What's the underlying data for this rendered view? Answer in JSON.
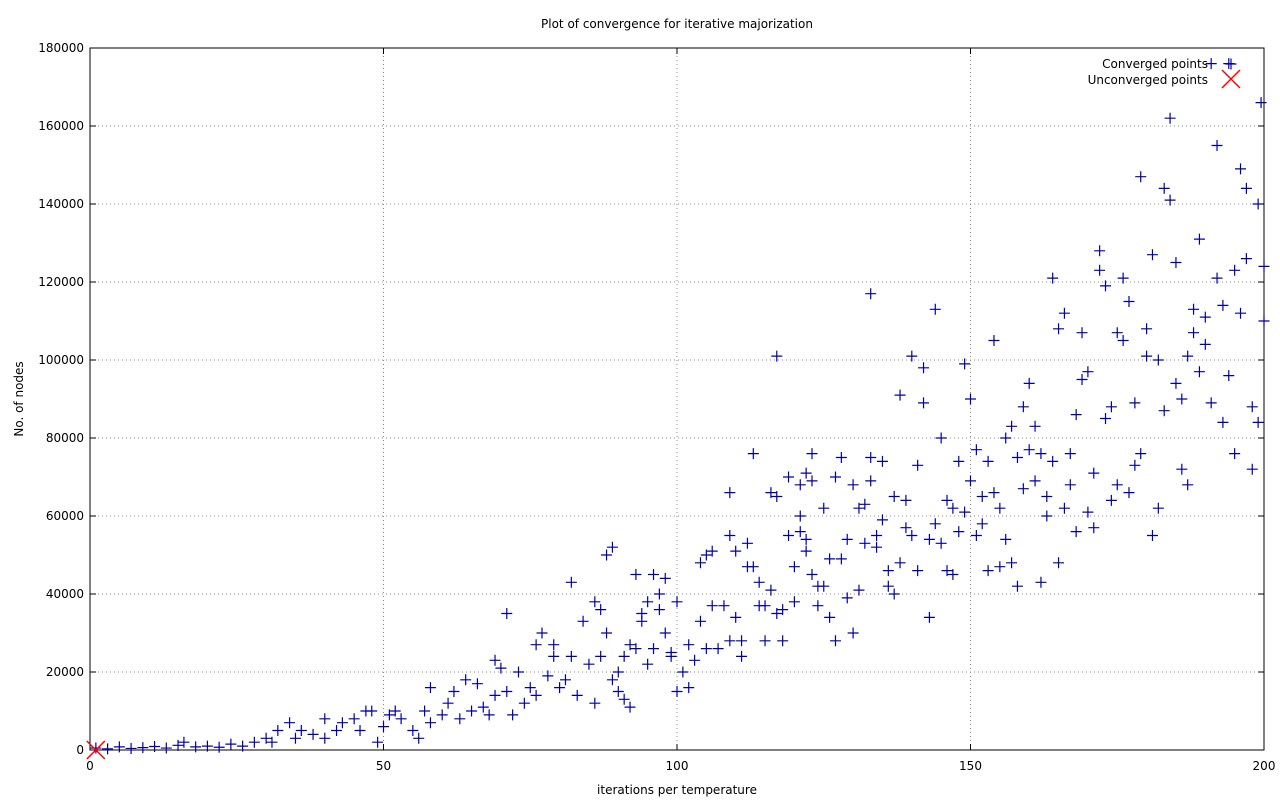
{
  "chart_data": {
    "type": "scatter",
    "title": "Plot of convergence for iterative majorization",
    "xlabel": "iterations per temperature",
    "ylabel": "No. of nodes",
    "xlim": [
      0,
      200
    ],
    "ylim": [
      0,
      180000
    ],
    "xticks": [
      0,
      50,
      100,
      150,
      200
    ],
    "yticks": [
      0,
      20000,
      40000,
      60000,
      80000,
      100000,
      120000,
      140000,
      160000,
      180000
    ],
    "grid": true,
    "legend_position": "top-right",
    "colors": {
      "converged": "#0000aa",
      "unconverged": "#ff0000",
      "grid": "#888888"
    },
    "series": [
      {
        "name": "Converged points",
        "marker": "plus",
        "points": [
          [
            1,
            500
          ],
          [
            3,
            300
          ],
          [
            5,
            800
          ],
          [
            7,
            400
          ],
          [
            9,
            600
          ],
          [
            11,
            900
          ],
          [
            13,
            500
          ],
          [
            15,
            1200
          ],
          [
            16,
            2000
          ],
          [
            18,
            800
          ],
          [
            20,
            1000
          ],
          [
            22,
            700
          ],
          [
            24,
            1500
          ],
          [
            26,
            1000
          ],
          [
            28,
            2000
          ],
          [
            30,
            3000
          ],
          [
            31,
            2000
          ],
          [
            32,
            5000
          ],
          [
            34,
            7000
          ],
          [
            35,
            3000
          ],
          [
            36,
            5000
          ],
          [
            38,
            4000
          ],
          [
            40,
            3000
          ],
          [
            40,
            8000
          ],
          [
            42,
            5000
          ],
          [
            43,
            7000
          ],
          [
            45,
            8000
          ],
          [
            46,
            5000
          ],
          [
            47,
            10000
          ],
          [
            48,
            10000
          ],
          [
            49,
            2000
          ],
          [
            50,
            6000
          ],
          [
            51,
            9000
          ],
          [
            52,
            10000
          ],
          [
            53,
            8000
          ],
          [
            55,
            5000
          ],
          [
            56,
            3000
          ],
          [
            57,
            10000
          ],
          [
            58,
            7000
          ],
          [
            58,
            16000
          ],
          [
            60,
            9000
          ],
          [
            61,
            12000
          ],
          [
            62,
            15000
          ],
          [
            63,
            8000
          ],
          [
            64,
            18000
          ],
          [
            65,
            10000
          ],
          [
            66,
            17000
          ],
          [
            67,
            11000
          ],
          [
            68,
            9000
          ],
          [
            69,
            14000
          ],
          [
            69,
            23000
          ],
          [
            70,
            21000
          ],
          [
            71,
            35000
          ],
          [
            71,
            15000
          ],
          [
            72,
            9000
          ],
          [
            73,
            20000
          ],
          [
            74,
            12000
          ],
          [
            75,
            16000
          ],
          [
            76,
            14000
          ],
          [
            76,
            27000
          ],
          [
            77,
            30000
          ],
          [
            78,
            19000
          ],
          [
            79,
            24000
          ],
          [
            79,
            27000
          ],
          [
            80,
            16000
          ],
          [
            81,
            18000
          ],
          [
            82,
            43000
          ],
          [
            82,
            24000
          ],
          [
            83,
            14000
          ],
          [
            84,
            33000
          ],
          [
            85,
            22000
          ],
          [
            86,
            12000
          ],
          [
            86,
            38000
          ],
          [
            87,
            36000
          ],
          [
            87,
            24000
          ],
          [
            88,
            30000
          ],
          [
            88,
            50000
          ],
          [
            89,
            52000
          ],
          [
            89,
            18000
          ],
          [
            90,
            20000
          ],
          [
            90,
            15000
          ],
          [
            91,
            13000
          ],
          [
            91,
            24000
          ],
          [
            92,
            11000
          ],
          [
            92,
            27000
          ],
          [
            93,
            45000
          ],
          [
            93,
            26000
          ],
          [
            94,
            35000
          ],
          [
            94,
            33000
          ],
          [
            95,
            38000
          ],
          [
            95,
            22000
          ],
          [
            96,
            45000
          ],
          [
            96,
            26000
          ],
          [
            97,
            40000
          ],
          [
            97,
            36000
          ],
          [
            98,
            44000
          ],
          [
            98,
            30000
          ],
          [
            99,
            24000
          ],
          [
            99,
            25000
          ],
          [
            100,
            38000
          ],
          [
            100,
            15000
          ],
          [
            101,
            20000
          ],
          [
            102,
            16000
          ],
          [
            102,
            27000
          ],
          [
            103,
            23000
          ],
          [
            104,
            48000
          ],
          [
            104,
            33000
          ],
          [
            105,
            50000
          ],
          [
            105,
            26000
          ],
          [
            106,
            51000
          ],
          [
            106,
            37000
          ],
          [
            107,
            26000
          ],
          [
            108,
            37000
          ],
          [
            109,
            28000
          ],
          [
            109,
            55000
          ],
          [
            109,
            66000
          ],
          [
            110,
            51000
          ],
          [
            110,
            34000
          ],
          [
            111,
            28000
          ],
          [
            111,
            24000
          ],
          [
            112,
            47000
          ],
          [
            112,
            53000
          ],
          [
            113,
            76000
          ],
          [
            113,
            47000
          ],
          [
            114,
            43000
          ],
          [
            114,
            37000
          ],
          [
            115,
            37000
          ],
          [
            115,
            28000
          ],
          [
            116,
            66000
          ],
          [
            116,
            41000
          ],
          [
            117,
            65000
          ],
          [
            117,
            35000
          ],
          [
            117,
            101000
          ],
          [
            118,
            36000
          ],
          [
            118,
            28000
          ],
          [
            119,
            70000
          ],
          [
            119,
            55000
          ],
          [
            120,
            47000
          ],
          [
            120,
            38000
          ],
          [
            121,
            68000
          ],
          [
            121,
            60000
          ],
          [
            121,
            56000
          ],
          [
            122,
            71000
          ],
          [
            122,
            51000
          ],
          [
            122,
            54000
          ],
          [
            123,
            45000
          ],
          [
            123,
            69000
          ],
          [
            123,
            76000
          ],
          [
            124,
            42000
          ],
          [
            124,
            37000
          ],
          [
            125,
            62000
          ],
          [
            125,
            42000
          ],
          [
            126,
            49000
          ],
          [
            126,
            34000
          ],
          [
            127,
            70000
          ],
          [
            127,
            28000
          ],
          [
            128,
            49000
          ],
          [
            128,
            75000
          ],
          [
            129,
            39000
          ],
          [
            129,
            54000
          ],
          [
            130,
            30000
          ],
          [
            130,
            68000
          ],
          [
            131,
            41000
          ],
          [
            131,
            62000
          ],
          [
            132,
            53000
          ],
          [
            132,
            63000
          ],
          [
            133,
            75000
          ],
          [
            133,
            117000
          ],
          [
            133,
            69000
          ],
          [
            134,
            55000
          ],
          [
            134,
            52000
          ],
          [
            135,
            59000
          ],
          [
            135,
            74000
          ],
          [
            136,
            46000
          ],
          [
            136,
            42000
          ],
          [
            137,
            40000
          ],
          [
            137,
            65000
          ],
          [
            138,
            91000
          ],
          [
            138,
            48000
          ],
          [
            139,
            57000
          ],
          [
            139,
            64000
          ],
          [
            140,
            101000
          ],
          [
            140,
            55000
          ],
          [
            141,
            46000
          ],
          [
            141,
            73000
          ],
          [
            142,
            98000
          ],
          [
            142,
            89000
          ],
          [
            143,
            34000
          ],
          [
            143,
            54000
          ],
          [
            144,
            113000
          ],
          [
            144,
            58000
          ],
          [
            145,
            53000
          ],
          [
            145,
            80000
          ],
          [
            146,
            46000
          ],
          [
            146,
            64000
          ],
          [
            147,
            45000
          ],
          [
            147,
            62000
          ],
          [
            148,
            74000
          ],
          [
            148,
            56000
          ],
          [
            149,
            99000
          ],
          [
            149,
            61000
          ],
          [
            150,
            90000
          ],
          [
            150,
            69000
          ],
          [
            151,
            77000
          ],
          [
            151,
            55000
          ],
          [
            152,
            65000
          ],
          [
            152,
            58000
          ],
          [
            153,
            74000
          ],
          [
            153,
            46000
          ],
          [
            154,
            105000
          ],
          [
            154,
            66000
          ],
          [
            155,
            47000
          ],
          [
            155,
            62000
          ],
          [
            156,
            80000
          ],
          [
            156,
            54000
          ],
          [
            157,
            83000
          ],
          [
            157,
            48000
          ],
          [
            158,
            42000
          ],
          [
            158,
            75000
          ],
          [
            159,
            88000
          ],
          [
            159,
            67000
          ],
          [
            160,
            94000
          ],
          [
            160,
            77000
          ],
          [
            161,
            83000
          ],
          [
            161,
            69000
          ],
          [
            162,
            76000
          ],
          [
            162,
            43000
          ],
          [
            163,
            65000
          ],
          [
            163,
            60000
          ],
          [
            164,
            121000
          ],
          [
            164,
            74000
          ],
          [
            165,
            108000
          ],
          [
            165,
            48000
          ],
          [
            166,
            112000
          ],
          [
            166,
            62000
          ],
          [
            167,
            76000
          ],
          [
            167,
            68000
          ],
          [
            168,
            86000
          ],
          [
            168,
            56000
          ],
          [
            169,
            107000
          ],
          [
            169,
            95000
          ],
          [
            170,
            97000
          ],
          [
            170,
            61000
          ],
          [
            171,
            71000
          ],
          [
            171,
            57000
          ],
          [
            172,
            128000
          ],
          [
            172,
            123000
          ],
          [
            173,
            85000
          ],
          [
            173,
            119000
          ],
          [
            174,
            88000
          ],
          [
            174,
            64000
          ],
          [
            175,
            107000
          ],
          [
            175,
            68000
          ],
          [
            176,
            121000
          ],
          [
            176,
            105000
          ],
          [
            177,
            115000
          ],
          [
            177,
            66000
          ],
          [
            178,
            89000
          ],
          [
            178,
            73000
          ],
          [
            179,
            147000
          ],
          [
            179,
            76000
          ],
          [
            180,
            108000
          ],
          [
            180,
            101000
          ],
          [
            181,
            127000
          ],
          [
            181,
            55000
          ],
          [
            182,
            100000
          ],
          [
            182,
            62000
          ],
          [
            183,
            144000
          ],
          [
            183,
            87000
          ],
          [
            184,
            162000
          ],
          [
            184,
            141000
          ],
          [
            185,
            125000
          ],
          [
            185,
            94000
          ],
          [
            186,
            90000
          ],
          [
            186,
            72000
          ],
          [
            187,
            101000
          ],
          [
            187,
            68000
          ],
          [
            188,
            113000
          ],
          [
            188,
            107000
          ],
          [
            189,
            131000
          ],
          [
            189,
            97000
          ],
          [
            190,
            104000
          ],
          [
            190,
            111000
          ],
          [
            191,
            176000
          ],
          [
            191,
            89000
          ],
          [
            192,
            155000
          ],
          [
            192,
            121000
          ],
          [
            193,
            114000
          ],
          [
            193,
            84000
          ],
          [
            194,
            96000
          ],
          [
            194,
            176000
          ],
          [
            195,
            123000
          ],
          [
            195,
            76000
          ],
          [
            196,
            149000
          ],
          [
            196,
            112000
          ],
          [
            197,
            144000
          ],
          [
            197,
            126000
          ],
          [
            198,
            72000
          ],
          [
            198,
            88000
          ],
          [
            199,
            140000
          ],
          [
            199,
            84000
          ],
          [
            199.5,
            166000
          ],
          [
            200,
            124000
          ],
          [
            200,
            110000
          ]
        ]
      },
      {
        "name": "Unconverged points",
        "marker": "cross",
        "points": [
          [
            1,
            0
          ]
        ]
      }
    ]
  }
}
